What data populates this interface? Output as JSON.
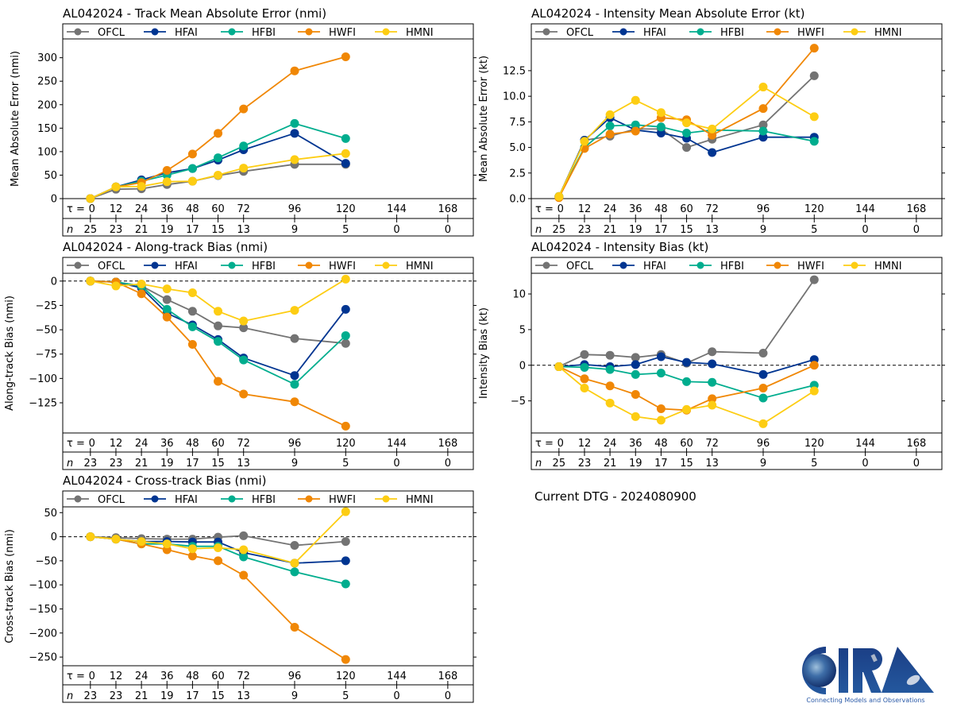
{
  "colors": {
    "OFCL": "#737373",
    "HFAI": "#003591",
    "HFBI": "#00ad8e",
    "HWFI": "#f08705",
    "HMNI": "#fdcd13"
  },
  "tau_label": "τ =",
  "n_label": "n",
  "current_dtg": "Current DTG - 2024080900",
  "logo": {
    "text": "CIRA",
    "tagline": "Connecting Models and Observations"
  },
  "chart_data": [
    {
      "id": "track-mae",
      "type": "line",
      "title": "AL042024 - Track Mean Absolute Error (nmi)",
      "xlabel": "",
      "ylabel": "Mean Absolute Error (nmi)",
      "x": [
        0,
        12,
        24,
        36,
        48,
        60,
        72,
        96,
        120
      ],
      "xticks": [
        0,
        12,
        24,
        36,
        48,
        60,
        72,
        96,
        120,
        144,
        168
      ],
      "n": [
        25,
        23,
        21,
        19,
        17,
        15,
        13,
        9,
        5,
        0,
        0
      ],
      "ylim": [
        0,
        340
      ],
      "yticks": [
        0,
        50,
        100,
        150,
        200,
        250,
        300
      ],
      "ytick_labels": [
        "0",
        "50",
        "100",
        "150",
        "200",
        "250",
        "300"
      ],
      "zero_line": false,
      "legend": "top",
      "series": [
        {
          "name": "OFCL",
          "values": [
            0,
            20,
            21,
            30,
            37,
            49,
            58,
            73,
            73
          ]
        },
        {
          "name": "HFAI",
          "values": [
            0,
            25,
            40,
            55,
            64,
            82,
            104,
            139,
            75
          ]
        },
        {
          "name": "HFBI",
          "values": [
            0,
            25,
            37,
            50,
            64,
            87,
            112,
            160,
            128
          ]
        },
        {
          "name": "HWFI",
          "values": [
            0,
            25,
            34,
            60,
            95,
            139,
            191,
            272,
            302
          ]
        },
        {
          "name": "HMNI",
          "values": [
            0,
            25,
            26,
            36,
            37,
            50,
            65,
            83,
            96
          ]
        }
      ]
    },
    {
      "id": "intensity-mae",
      "type": "line",
      "title": "AL042024 - Intensity Mean Absolute Error (kt)",
      "xlabel": "",
      "ylabel": "Mean Absolute Error (kt)",
      "x": [
        0,
        12,
        24,
        36,
        48,
        60,
        72,
        96,
        120
      ],
      "xticks": [
        0,
        12,
        24,
        36,
        48,
        60,
        72,
        96,
        120,
        144,
        168
      ],
      "n": [
        25,
        23,
        21,
        19,
        17,
        15,
        13,
        9,
        5,
        0,
        0
      ],
      "ylim": [
        0,
        15.6
      ],
      "yticks": [
        0,
        2.5,
        5,
        7.5,
        10,
        12.5
      ],
      "ytick_labels": [
        "0.0",
        "2.5",
        "5.0",
        "7.5",
        "10.0",
        "12.5"
      ],
      "zero_line": false,
      "legend": "top",
      "series": [
        {
          "name": "OFCL",
          "values": [
            0.2,
            5.7,
            6.1,
            6.8,
            6.8,
            5.0,
            5.8,
            7.2,
            12.0
          ]
        },
        {
          "name": "HFAI",
          "values": [
            0.2,
            5.7,
            7.9,
            6.7,
            6.4,
            5.9,
            4.5,
            6.0,
            6.0
          ]
        },
        {
          "name": "HFBI",
          "values": [
            0.2,
            5.0,
            7.1,
            7.2,
            7.0,
            6.4,
            6.7,
            6.6,
            5.6
          ]
        },
        {
          "name": "HWFI",
          "values": [
            0.1,
            4.9,
            6.3,
            6.6,
            7.9,
            7.7,
            6.2,
            8.8,
            14.7
          ]
        },
        {
          "name": "HMNI",
          "values": [
            0.2,
            5.6,
            8.2,
            9.6,
            8.4,
            7.4,
            6.8,
            10.9,
            8.0
          ]
        }
      ]
    },
    {
      "id": "along-track-bias",
      "type": "line",
      "title": "AL042024 - Along-track Bias (nmi)",
      "xlabel": "",
      "ylabel": "Along-track Bias (nmi)",
      "x": [
        0,
        12,
        24,
        36,
        48,
        60,
        72,
        96,
        120
      ],
      "xticks": [
        0,
        12,
        24,
        36,
        48,
        60,
        72,
        96,
        120,
        144,
        168
      ],
      "n": [
        23,
        23,
        21,
        19,
        17,
        15,
        13,
        9,
        5,
        0,
        0
      ],
      "ylim": [
        -156,
        8
      ],
      "yticks": [
        0,
        -25,
        -50,
        -75,
        -100,
        -125
      ],
      "ytick_labels": [
        "0",
        "−25",
        "−50",
        "−75",
        "−100",
        "−125"
      ],
      "zero_line": true,
      "legend": "top",
      "series": [
        {
          "name": "OFCL",
          "values": [
            0,
            -1,
            -5,
            -19,
            -31,
            -46,
            -48,
            -59,
            -64
          ]
        },
        {
          "name": "HFAI",
          "values": [
            0,
            -1,
            -7,
            -33,
            -45,
            -60,
            -79,
            -97,
            -29
          ]
        },
        {
          "name": "HFBI",
          "values": [
            0,
            -1,
            -5,
            -29,
            -47,
            -62,
            -81,
            -106,
            -56
          ]
        },
        {
          "name": "HWFI",
          "values": [
            0,
            -1,
            -13,
            -37,
            -65,
            -103,
            -116,
            -124,
            -149
          ]
        },
        {
          "name": "HMNI",
          "values": [
            0,
            -5,
            -3,
            -8,
            -12,
            -31,
            -41,
            -30,
            2
          ]
        }
      ]
    },
    {
      "id": "intensity-bias",
      "type": "line",
      "title": "AL042024 - Intensity Bias (kt)",
      "xlabel": "",
      "ylabel": "Intensity Bias (kt)",
      "x": [
        0,
        12,
        24,
        36,
        48,
        60,
        72,
        96,
        120
      ],
      "xticks": [
        0,
        12,
        24,
        36,
        48,
        60,
        72,
        96,
        120,
        144,
        168
      ],
      "n": [
        25,
        23,
        21,
        19,
        17,
        15,
        13,
        9,
        5,
        0,
        0
      ],
      "ylim": [
        -9.5,
        12.9
      ],
      "yticks": [
        10,
        5,
        0,
        -5
      ],
      "ytick_labels": [
        "10",
        "5",
        "0",
        "−5"
      ],
      "zero_line": true,
      "legend": "top",
      "series": [
        {
          "name": "OFCL",
          "values": [
            -0.2,
            1.5,
            1.4,
            1.1,
            1.5,
            0.3,
            1.9,
            1.7,
            12.0
          ]
        },
        {
          "name": "HFAI",
          "values": [
            -0.2,
            0.1,
            -0.2,
            0.1,
            1.2,
            0.4,
            0.2,
            -1.3,
            0.8
          ]
        },
        {
          "name": "HFBI",
          "values": [
            -0.2,
            -0.3,
            -0.6,
            -1.3,
            -1.1,
            -2.3,
            -2.4,
            -4.6,
            -2.8
          ]
        },
        {
          "name": "HWFI",
          "values": [
            -0.2,
            -1.9,
            -2.9,
            -4.1,
            -6.1,
            -6.3,
            -4.7,
            -3.2,
            0.0
          ]
        },
        {
          "name": "HMNI",
          "values": [
            -0.2,
            -3.2,
            -5.3,
            -7.2,
            -7.7,
            -6.2,
            -5.6,
            -8.2,
            -3.6
          ]
        }
      ]
    },
    {
      "id": "cross-track-bias",
      "type": "line",
      "title": "AL042024 - Cross-track Bias (nmi)",
      "xlabel": "",
      "ylabel": "Cross-track Bias (nmi)",
      "x": [
        0,
        12,
        24,
        36,
        48,
        60,
        72,
        96,
        120
      ],
      "xticks": [
        0,
        12,
        24,
        36,
        48,
        60,
        72,
        96,
        120,
        144,
        168
      ],
      "n": [
        23,
        23,
        21,
        19,
        17,
        15,
        13,
        9,
        5,
        0,
        0
      ],
      "ylim": [
        -268,
        62
      ],
      "yticks": [
        50,
        0,
        -50,
        -100,
        -150,
        -200,
        -250
      ],
      "ytick_labels": [
        "50",
        "0",
        "−50",
        "−100",
        "−150",
        "−200",
        "−250"
      ],
      "zero_line": true,
      "legend": "top",
      "series": [
        {
          "name": "OFCL",
          "values": [
            0,
            -2,
            -4,
            -5,
            -5,
            -1,
            2,
            -18,
            -10
          ]
        },
        {
          "name": "HFAI",
          "values": [
            0,
            -5,
            -10,
            -10,
            -11,
            -11,
            -33,
            -55,
            -50
          ]
        },
        {
          "name": "HFBI",
          "values": [
            0,
            -5,
            -15,
            -15,
            -20,
            -20,
            -42,
            -73,
            -98
          ]
        },
        {
          "name": "HWFI",
          "values": [
            0,
            -5,
            -15,
            -27,
            -40,
            -50,
            -80,
            -188,
            -255
          ]
        },
        {
          "name": "HMNI",
          "values": [
            0,
            -5,
            -10,
            -15,
            -25,
            -23,
            -27,
            -55,
            52
          ]
        }
      ]
    }
  ]
}
